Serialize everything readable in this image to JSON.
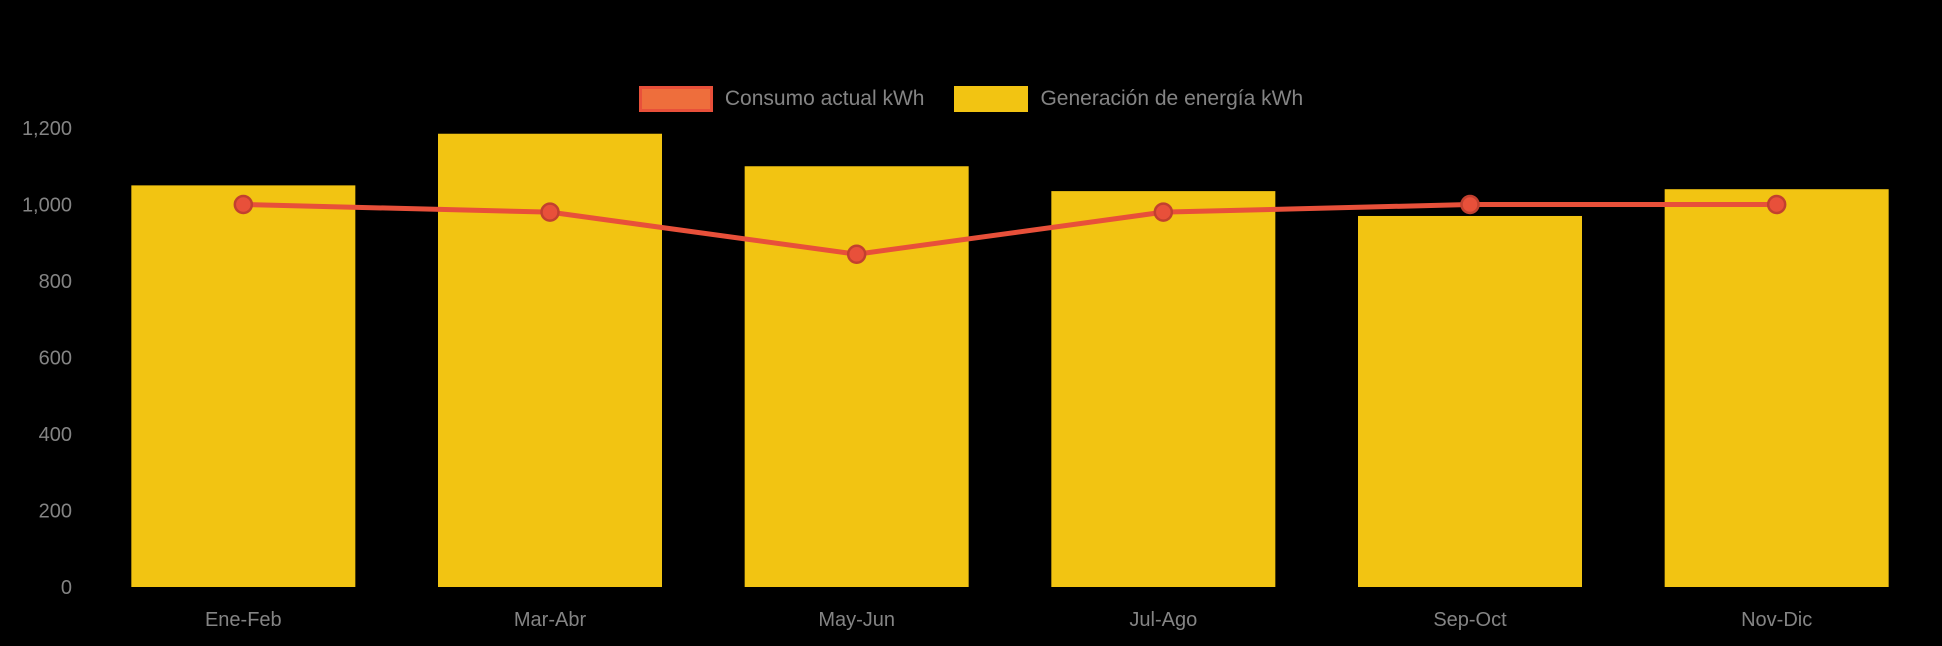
{
  "chart_data": {
    "type": "bar",
    "title": "",
    "categories": [
      "Ene-Feb",
      "Mar-Abr",
      "May-Jun",
      "Jul-Ago",
      "Sep-Oct",
      "Nov-Dic"
    ],
    "series": [
      {
        "name": "Generación de energía kWh",
        "type": "bar",
        "color": "#F2C412",
        "values": [
          1050,
          1185,
          1100,
          1035,
          970,
          1040
        ]
      },
      {
        "name": "Consumo actual kWh",
        "type": "line",
        "color": "#E8503A",
        "marker_stroke": "#C2402F",
        "values": [
          1000,
          980,
          870,
          980,
          1000,
          1000
        ]
      }
    ],
    "xlabel": "",
    "ylabel": "",
    "ylim": [
      0,
      1200
    ],
    "yticks": [
      0,
      200,
      400,
      600,
      800,
      1000,
      1200
    ],
    "ytick_labels": [
      "0",
      "200",
      "400",
      "600",
      "800",
      "1,000",
      "1,200"
    ],
    "grid": false,
    "legend_position": "top",
    "background_color": "#000000",
    "text_color": "#848484"
  },
  "legend": {
    "items": [
      {
        "label": "Consumo actual kWh",
        "swatch_fill": "#EE6E3C",
        "swatch_stroke": "#E8503A"
      },
      {
        "label": "Generación de energía kWh",
        "swatch_fill": "#F2C412",
        "swatch_stroke": "#F2C412"
      }
    ]
  }
}
